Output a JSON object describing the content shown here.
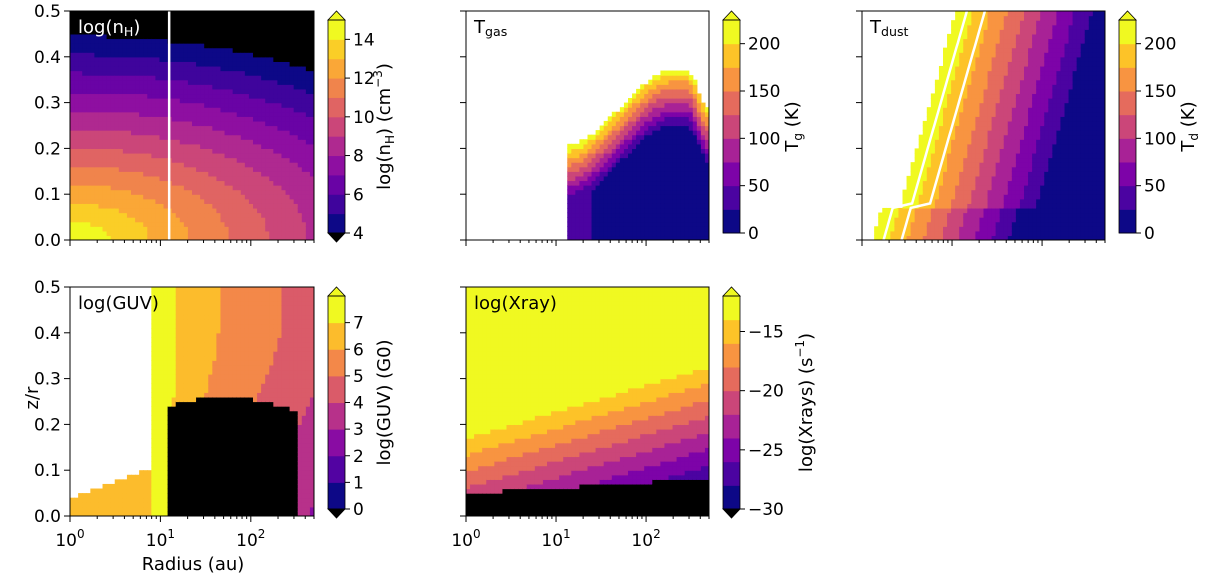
{
  "figure": {
    "xlabel": "Radius (au)",
    "ylabel": "z/r"
  },
  "chart_data": [
    {
      "type": "heatmap",
      "title": "log(n_H)",
      "title_html": [
        "log(n",
        "H",
        ")"
      ],
      "xscale": "log",
      "xlim": [
        1,
        500
      ],
      "ylim": [
        0,
        0.5
      ],
      "x_ticks": [
        1,
        10,
        100
      ],
      "x_tick_labels_visible": false,
      "y_ticks": [
        0.0,
        0.1,
        0.2,
        0.3,
        0.4,
        0.5
      ],
      "y_tick_labels_visible": true,
      "colorbar": {
        "label": "log(n_H) (cm^-3)",
        "label_parts": [
          "log(n",
          "H",
          ") (cm",
          "−3",
          ")"
        ],
        "min": 4,
        "max": 15,
        "levels": 11,
        "ticks": [
          4,
          6,
          8,
          10,
          12,
          14
        ],
        "extend": "both"
      },
      "annotations": [
        {
          "type": "vertical-line",
          "x": 12.5,
          "color": "#ffffff"
        }
      ],
      "colormap": "plasma"
    },
    {
      "type": "heatmap",
      "title": "T_gas",
      "title_html": [
        "T",
        "gas",
        ""
      ],
      "xscale": "log",
      "xlim": [
        1,
        500
      ],
      "ylim": [
        0,
        0.5
      ],
      "x_ticks": [
        1,
        10,
        100
      ],
      "x_tick_labels_visible": false,
      "y_tick_labels_visible": false,
      "colorbar": {
        "label": "T_g (K)",
        "label_parts": [
          "T",
          "g",
          " (K)"
        ],
        "min": 0,
        "max": 225,
        "levels": 9,
        "ticks": [
          0,
          50,
          100,
          150,
          200
        ],
        "extend": "max"
      },
      "colormap": "plasma"
    },
    {
      "type": "heatmap",
      "title": "T_dust",
      "title_html": [
        "T",
        "dust",
        ""
      ],
      "xscale": "log",
      "xlim": [
        1,
        500
      ],
      "ylim": [
        0,
        0.5
      ],
      "x_ticks": [
        1,
        10,
        100
      ],
      "x_tick_labels_visible": false,
      "y_tick_labels_visible": false,
      "colorbar": {
        "label": "T_d (K)",
        "label_parts": [
          "T",
          "d",
          " (K)"
        ],
        "min": 0,
        "max": 225,
        "levels": 9,
        "ticks": [
          0,
          50,
          100,
          150,
          200
        ],
        "extend": "max"
      },
      "annotations": [
        {
          "type": "contour",
          "color": "#ffffff",
          "count": 2
        }
      ],
      "colormap": "plasma"
    },
    {
      "type": "heatmap",
      "title": "log(GUV)",
      "xscale": "log",
      "xlim": [
        1,
        500
      ],
      "ylim": [
        0,
        0.5
      ],
      "x_ticks": [
        1,
        10,
        100
      ],
      "x_tick_labels": [
        "10^0",
        "10^1",
        "10^2"
      ],
      "y_ticks": [
        0.0,
        0.1,
        0.2,
        0.3,
        0.4,
        0.5
      ],
      "y_tick_labels_visible": true,
      "colorbar": {
        "label": "log(GUV) (G0)",
        "min": 0,
        "max": 8,
        "levels": 8,
        "ticks": [
          0,
          1,
          2,
          3,
          4,
          5,
          6,
          7
        ],
        "extend": "both"
      },
      "colormap": "plasma"
    },
    {
      "type": "heatmap",
      "title": "log(Xray)",
      "xscale": "log",
      "xlim": [
        1,
        500
      ],
      "ylim": [
        0,
        0.5
      ],
      "x_ticks": [
        1,
        10,
        100
      ],
      "x_tick_labels": [
        "10^0",
        "10^1",
        "10^2"
      ],
      "y_tick_labels_visible": false,
      "colorbar": {
        "label": "log(Xrays) (s^-1)",
        "label_parts": [
          "log(Xrays) (s",
          "−1",
          ")"
        ],
        "min": -30,
        "max": -12,
        "levels": 9,
        "ticks": [
          -30,
          -25,
          -20,
          -15
        ],
        "extend": "both"
      },
      "colormap": "plasma"
    }
  ]
}
